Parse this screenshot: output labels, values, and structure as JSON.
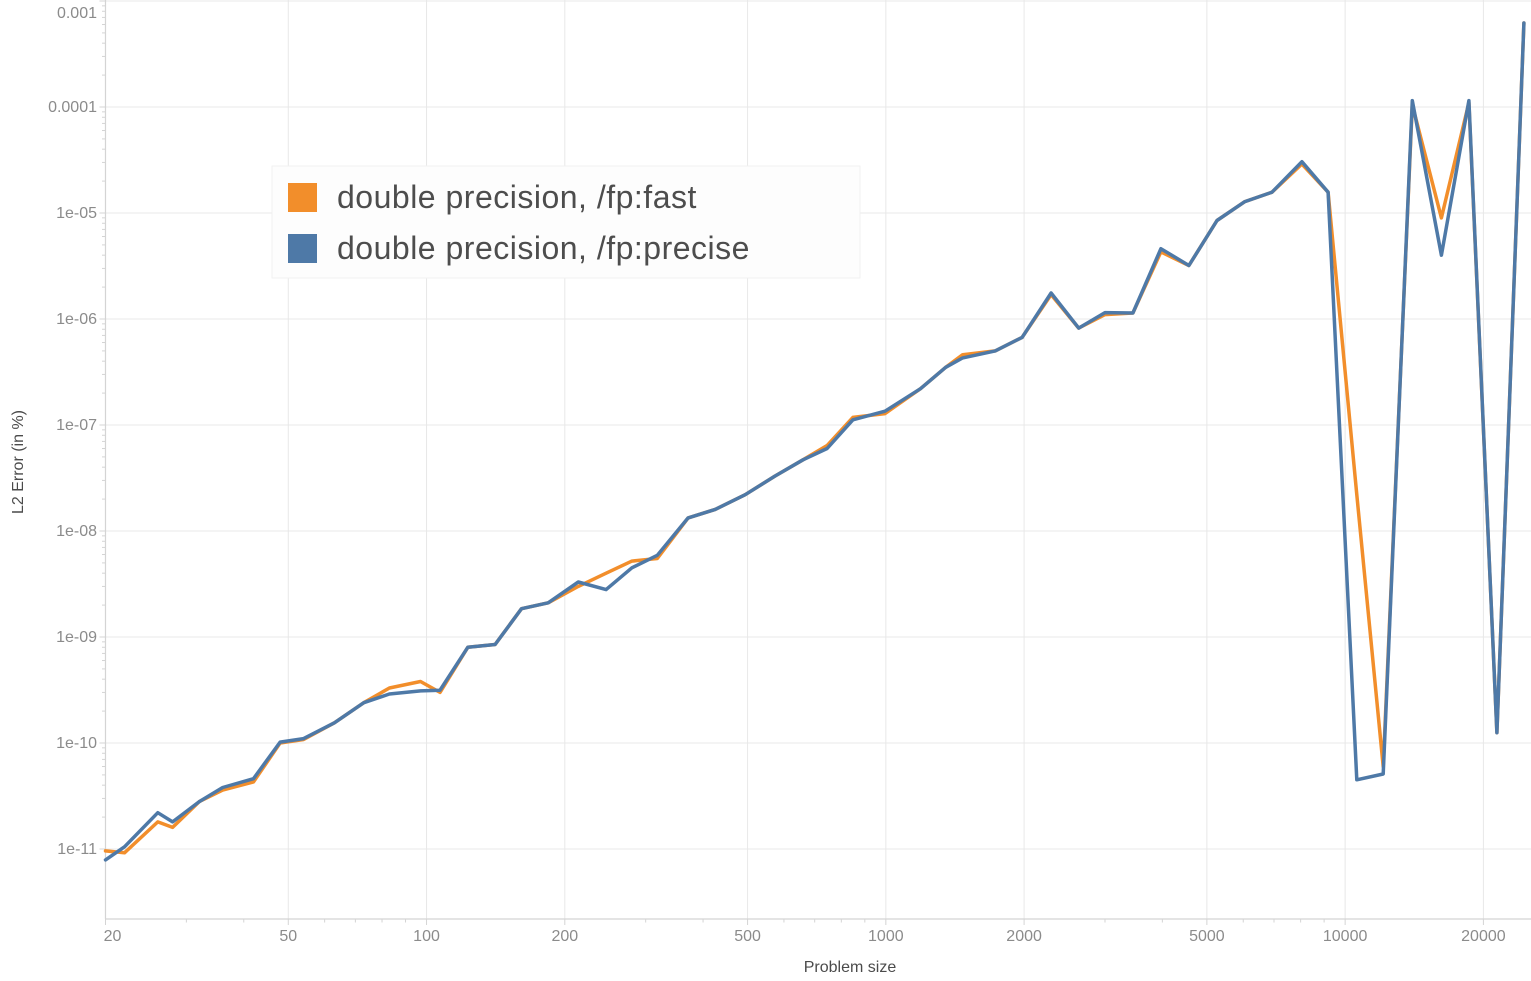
{
  "chart_data": {
    "type": "line",
    "title": "",
    "xlabel": "Problem size",
    "ylabel": "L2 Error (in %)",
    "x_scale": "log",
    "y_scale": "log",
    "grid": true,
    "legend_position": "upper-left-inside",
    "xlim": [
      20,
      25380
    ],
    "ylim": [
      2.2e-12,
      0.001
    ],
    "x_major_ticks": [
      20,
      50,
      100,
      200,
      500,
      1000,
      2000,
      5000,
      10000,
      20000
    ],
    "x_tick_labels": [
      "20",
      "50",
      "100",
      "200",
      "500",
      "1000",
      "2000",
      "5000",
      "10000",
      "20000"
    ],
    "x_minor_ticks": [
      30,
      40,
      60,
      70,
      80,
      90,
      300,
      400,
      600,
      700,
      800,
      900,
      3000,
      4000,
      6000,
      7000,
      8000,
      9000
    ],
    "y_major_ticks": [
      0.001,
      0.0001,
      1e-05,
      1e-06,
      1e-07,
      1e-08,
      1e-09,
      1e-10,
      1e-11
    ],
    "y_tick_labels": [
      "0.001",
      "0.0001",
      "1e-05",
      "1e-06",
      "1e-07",
      "1e-08",
      "1e-09",
      "1e-10",
      "1e-11"
    ],
    "x": [
      20,
      22,
      26,
      28,
      32,
      36,
      42,
      48,
      54,
      63,
      73,
      83,
      97,
      107,
      123,
      141,
      161,
      184,
      214,
      246,
      280,
      318,
      371,
      425,
      494,
      574,
      660,
      745,
      848,
      996,
      1190,
      1350,
      1470,
      1730,
      1980,
      2290,
      2630,
      3000,
      3450,
      3970,
      4570,
      5260,
      6050,
      6930,
      8050,
      9180,
      10600,
      12100,
      14000,
      16200,
      18600,
      21400,
      24500
    ],
    "series": [
      {
        "name": "double precision, /fp:fast",
        "color": "#f28e2b",
        "values": [
          9.6e-12,
          9.2e-12,
          1.8e-11,
          1.6e-11,
          2.8e-11,
          3.6e-11,
          4.3e-11,
          1e-10,
          1.08e-10,
          1.55e-10,
          2.4e-10,
          3.3e-10,
          3.8e-10,
          3e-10,
          8e-10,
          8.5e-10,
          1.85e-09,
          2.1e-09,
          3e-09,
          4e-09,
          5.2e-09,
          5.5e-09,
          1.33e-08,
          1.6e-08,
          2.2e-08,
          3.3e-08,
          4.7e-08,
          6.4e-08,
          1.18e-07,
          1.28e-07,
          2.2e-07,
          3.5e-07,
          4.6e-07,
          5e-07,
          6.7e-07,
          1.7e-06,
          8.2e-07,
          1.1e-06,
          1.14e-06,
          4.3e-06,
          3.2e-06,
          8.5e-06,
          1.28e-05,
          1.57e-05,
          2.9e-05,
          1.57e-05,
          2.2e-08,
          6e-11,
          0.000105,
          9e-06,
          0.00011,
          1.25e-10,
          0.00062
        ]
      },
      {
        "name": "double precision, /fp:precise",
        "color": "#4e79a7",
        "values": [
          7.9e-12,
          1.05e-11,
          2.2e-11,
          1.8e-11,
          2.8e-11,
          3.8e-11,
          4.6e-11,
          1.02e-10,
          1.1e-10,
          1.55e-10,
          2.4e-10,
          2.9e-10,
          3.1e-10,
          3.15e-10,
          8e-10,
          8.5e-10,
          1.85e-09,
          2.1e-09,
          3.3e-09,
          2.8e-09,
          4.5e-09,
          5.9e-09,
          1.33e-08,
          1.6e-08,
          2.2e-08,
          3.3e-08,
          4.7e-08,
          6e-08,
          1.12e-07,
          1.35e-07,
          2.2e-07,
          3.5e-07,
          4.3e-07,
          5e-07,
          6.7e-07,
          1.76e-06,
          8.2e-07,
          1.15e-06,
          1.14e-06,
          4.6e-06,
          3.2e-06,
          8.5e-06,
          1.28e-05,
          1.57e-05,
          3.05e-05,
          1.57e-05,
          4.5e-11,
          5.1e-11,
          0.000115,
          4e-06,
          0.000115,
          1.25e-10,
          0.00062
        ]
      }
    ]
  },
  "legend": {
    "items": [
      {
        "label": "double precision, /fp:fast",
        "color": "#f28e2b"
      },
      {
        "label": "double precision, /fp:precise",
        "color": "#4e79a7"
      }
    ]
  },
  "colors": {
    "background": "#ffffff",
    "gridline": "#e8e8e8",
    "axis_line": "#d4d4d4",
    "tick_mark": "#d4d4d4",
    "tick_text": "#8b8b8b",
    "axis_title_text": "#4b4b4b",
    "legend_text": "#4d4d4d",
    "legend_bg": "#fdfdfd",
    "legend_border": "#f1f1f1"
  }
}
